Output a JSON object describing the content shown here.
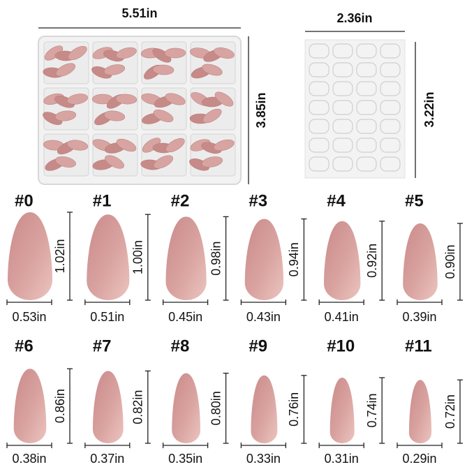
{
  "box": {
    "width": "5.51in",
    "height": "3.85in"
  },
  "sticker_sheet": {
    "width": "2.36in",
    "height": "3.22in"
  },
  "nails": [
    {
      "label": "#0",
      "length": "1.02in",
      "width": "0.53in"
    },
    {
      "label": "#1",
      "length": "1.00in",
      "width": "0.51in"
    },
    {
      "label": "#2",
      "length": "0.98in",
      "width": "0.45in"
    },
    {
      "label": "#3",
      "length": "0.94in",
      "width": "0.43in"
    },
    {
      "label": "#4",
      "length": "0.92in",
      "width": "0.41in"
    },
    {
      "label": "#5",
      "length": "0.90in",
      "width": "0.39in"
    },
    {
      "label": "#6",
      "length": "0.86in",
      "width": "0.38in"
    },
    {
      "label": "#7",
      "length": "0.82in",
      "width": "0.37in"
    },
    {
      "label": "#8",
      "length": "0.80in",
      "width": "0.35in"
    },
    {
      "label": "#9",
      "length": "0.76in",
      "width": "0.33in"
    },
    {
      "label": "#10",
      "length": "0.74in",
      "width": "0.31in"
    },
    {
      "label": "#11",
      "length": "0.72in",
      "width": "0.29in"
    }
  ]
}
